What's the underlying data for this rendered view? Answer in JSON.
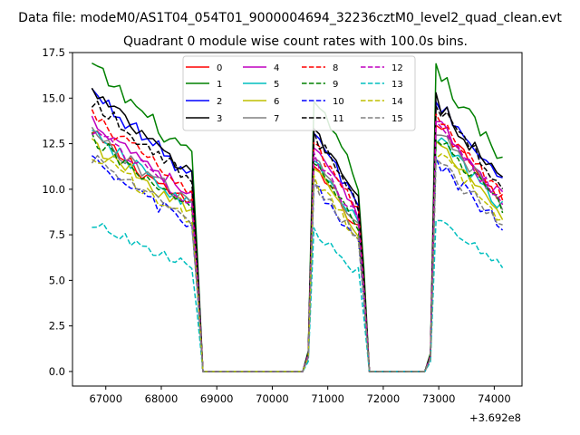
{
  "chart_data": {
    "type": "line",
    "suptitle": "Data file: modeM0/AS1T04_054T01_9000004694_32236cztM0_level2_quad_clean.evt",
    "title": "Quadrant 0 module wise count rates with 100.0s bins.",
    "xlabel": "",
    "ylabel": "",
    "x_offset_label": "+3.692e8",
    "xlim": [
      66400,
      74500
    ],
    "ylim": [
      -0.8,
      17.5
    ],
    "xticks": [
      67000,
      68000,
      69000,
      70000,
      71000,
      72000,
      73000,
      74000
    ],
    "yticks": [
      0.0,
      2.5,
      5.0,
      7.5,
      10.0,
      12.5,
      15.0,
      17.5
    ],
    "grid": false,
    "legend_position": "top-center",
    "legend_columns": 4,
    "orbit_segments": [
      {
        "x_start": 66750,
        "x_end": 68550
      },
      {
        "x_start": 70750,
        "x_end": 71550
      },
      {
        "x_start": 72950,
        "x_end": 74150
      }
    ],
    "gap_ranges": [
      [
        68650,
        70550
      ],
      [
        71650,
        72850
      ]
    ],
    "series": [
      {
        "name": "0",
        "color": "#ff0000",
        "dash": "solid",
        "segment_means": [
          11.0,
          9.6,
          11.6
        ],
        "noise": 0.45
      },
      {
        "name": "1",
        "color": "#008000",
        "dash": "solid",
        "segment_means": [
          14.2,
          12.6,
          14.0
        ],
        "noise": 0.5
      },
      {
        "name": "2",
        "color": "#0000ff",
        "dash": "solid",
        "segment_means": [
          13.0,
          11.1,
          12.6
        ],
        "noise": 0.45
      },
      {
        "name": "3",
        "color": "#000000",
        "dash": "solid",
        "segment_means": [
          13.0,
          11.3,
          12.6
        ],
        "noise": 0.45
      },
      {
        "name": "4",
        "color": "#bf00bf",
        "dash": "solid",
        "segment_means": [
          11.7,
          10.4,
          11.6
        ],
        "noise": 0.4
      },
      {
        "name": "5",
        "color": "#00bfbf",
        "dash": "solid",
        "segment_means": [
          11.0,
          9.8,
          10.9
        ],
        "noise": 0.4
      },
      {
        "name": "6",
        "color": "#bfbf00",
        "dash": "solid",
        "segment_means": [
          10.6,
          9.4,
          10.6
        ],
        "noise": 0.4
      },
      {
        "name": "7",
        "color": "#808080",
        "dash": "solid",
        "segment_means": [
          11.1,
          9.9,
          11.2
        ],
        "noise": 0.4
      },
      {
        "name": "8",
        "color": "#ff0000",
        "dash": "dashed",
        "segment_means": [
          11.9,
          10.6,
          11.8
        ],
        "noise": 0.4
      },
      {
        "name": "9",
        "color": "#008000",
        "dash": "dashed",
        "segment_means": [
          10.8,
          9.6,
          10.9
        ],
        "noise": 0.4
      },
      {
        "name": "10",
        "color": "#0000ff",
        "dash": "dashed",
        "segment_means": [
          9.7,
          8.6,
          9.7
        ],
        "noise": 0.4
      },
      {
        "name": "11",
        "color": "#000000",
        "dash": "dashed",
        "segment_means": [
          12.6,
          11.1,
          12.4
        ],
        "noise": 0.4
      },
      {
        "name": "12",
        "color": "#bf00bf",
        "dash": "dashed",
        "segment_means": [
          11.3,
          10.1,
          11.3
        ],
        "noise": 0.4
      },
      {
        "name": "13",
        "color": "#00bfbf",
        "dash": "dashed",
        "segment_means": [
          6.9,
          6.6,
          7.0
        ],
        "noise": 0.3
      },
      {
        "name": "14",
        "color": "#bfbf00",
        "dash": "dashed",
        "segment_means": [
          10.1,
          9.0,
          10.2
        ],
        "noise": 0.4
      },
      {
        "name": "15",
        "color": "#808080",
        "dash": "dashed",
        "segment_means": [
          9.9,
          8.8,
          9.8
        ],
        "noise": 0.4
      }
    ]
  }
}
